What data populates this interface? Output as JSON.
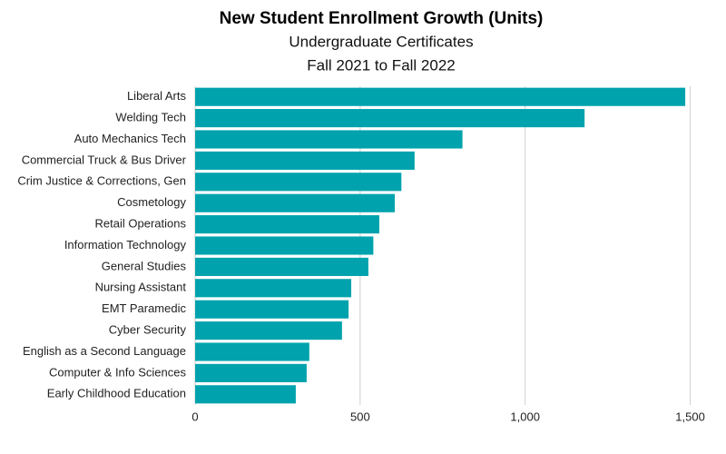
{
  "chart_data": {
    "type": "hbar",
    "title": "New Student Enrollment Growth (Units)",
    "subtitle": [
      "Undergraduate Certificates",
      "Fall 2021 to Fall 2022"
    ],
    "categories": [
      "Liberal Arts",
      "Welding Tech",
      "Auto Mechanics Tech",
      "Commercial Truck & Bus Driver",
      "Crim Justice & Corrections, Gen",
      "Cosmetology",
      "Retail Operations",
      "Information Technology",
      "General Studies",
      "Nursing Assistant",
      "EMT Paramedic",
      "Cyber Security",
      "English as a Second Language",
      "Computer & Info Sciences",
      "Early Childhood Education"
    ],
    "values": [
      1485,
      1180,
      810,
      665,
      625,
      605,
      558,
      540,
      525,
      473,
      465,
      445,
      346,
      338,
      305
    ],
    "color": "#00a3ad",
    "xlim": [
      0,
      1570
    ],
    "xticks": [
      0,
      500,
      {
        "value": 1000,
        "label": "1,000"
      },
      {
        "value": 1500,
        "label": "1,500"
      }
    ],
    "grid": true
  }
}
